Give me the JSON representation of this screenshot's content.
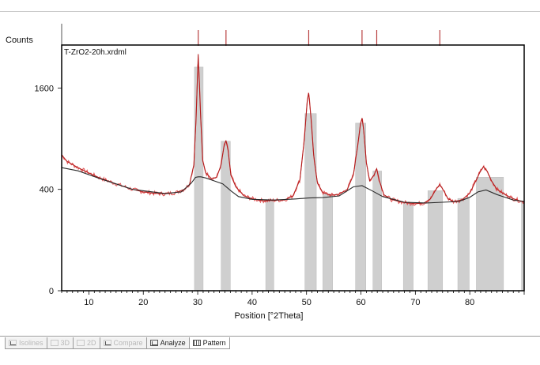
{
  "tabs": [
    {
      "label": "Isolines",
      "icon": "isolines-icon",
      "state": "disabled"
    },
    {
      "label": "3D",
      "icon": "3d-view-icon",
      "state": "disabled"
    },
    {
      "label": "2D",
      "icon": "2d-view-icon",
      "state": "disabled"
    },
    {
      "label": "Compare",
      "icon": "compare-icon",
      "state": "disabled"
    },
    {
      "label": "Analyze",
      "icon": "analyze-graph-icon",
      "state": "enabled"
    },
    {
      "label": "Pattern",
      "icon": "pattern-icon",
      "state": "active"
    }
  ],
  "colors": {
    "observed": "#e0494a",
    "calculated": "#b01818",
    "background": "#2a2a2a",
    "region_fill": "#cfcfcf",
    "peak_marker": "#b84040"
  },
  "chart_data": {
    "type": "line",
    "title": "",
    "scan_name": "T-ZrO2-20h.xrdml",
    "xlabel": "Position [°2Theta]",
    "ylabel": "Counts",
    "xlim": [
      5,
      90
    ],
    "ylim": [
      0,
      2350
    ],
    "scale": "sqrt",
    "x_ticks": [
      10,
      20,
      30,
      40,
      50,
      60,
      70,
      80
    ],
    "y_ticks": [
      0,
      400,
      1600
    ],
    "peak_markers": [
      30.1,
      35.2,
      50.4,
      60.2,
      62.9,
      74.5
    ],
    "background_regions": [
      [
        29.4,
        31.0
      ],
      [
        34.3,
        36.0
      ],
      [
        42.5,
        44.0
      ],
      [
        49.7,
        51.8
      ],
      [
        53.0,
        54.8
      ],
      [
        59.0,
        60.9
      ],
      [
        62.2,
        63.8
      ],
      [
        67.8,
        69.6
      ],
      [
        72.3,
        75.0
      ],
      [
        77.8,
        79.9
      ],
      [
        81.2,
        86.2
      ],
      [
        89.5,
        90.0
      ]
    ],
    "series": [
      {
        "role": "calculated",
        "x": [
          5,
          6,
          8,
          10,
          12,
          15,
          18,
          20,
          22,
          24,
          26,
          27.5,
          28.5,
          29.3,
          29.7,
          30.1,
          30.5,
          30.9,
          31.5,
          32.5,
          33.5,
          34.3,
          34.8,
          35.2,
          35.6,
          36.1,
          37,
          38.5,
          40,
          42,
          44,
          46,
          47.5,
          48.8,
          49.6,
          50.1,
          50.4,
          50.8,
          51.3,
          52,
          53,
          54.5,
          56,
          57.5,
          58.6,
          59.4,
          59.9,
          60.2,
          60.5,
          61,
          61.6,
          62.4,
          62.9,
          63.4,
          64.2,
          65.5,
          67,
          68.5,
          70,
          71.5,
          72.8,
          73.8,
          74.5,
          75.2,
          76,
          77,
          78.5,
          80,
          81,
          81.8,
          82.5,
          83.2,
          84,
          85,
          86.5,
          88,
          89.2,
          90
        ],
        "y": [
          720,
          650,
          590,
          540,
          495,
          445,
          400,
          380,
          370,
          365,
          375,
          400,
          440,
          620,
          1150,
          2180,
          1250,
          660,
          540,
          490,
          500,
          620,
          800,
          880,
          760,
          520,
          420,
          350,
          330,
          315,
          318,
          322,
          350,
          480,
          900,
          1380,
          1520,
          1180,
          720,
          450,
          375,
          355,
          362,
          400,
          520,
          820,
          1080,
          1160,
          1000,
          640,
          470,
          520,
          580,
          470,
          360,
          325,
          310,
          300,
          295,
          298,
          330,
          400,
          440,
          390,
          330,
          310,
          320,
          370,
          460,
          540,
          600,
          555,
          470,
          400,
          360,
          330,
          315,
          305
        ]
      },
      {
        "role": "background",
        "x": [
          5,
          8,
          12,
          18,
          24,
          27,
          28.8,
          29.6,
          30.1,
          30.6,
          31.5,
          33,
          34.6,
          36.2,
          37.5,
          40,
          44,
          48,
          50.4,
          53,
          56,
          58.6,
          60.2,
          62,
          64,
          68,
          72,
          75,
          78,
          80,
          81.5,
          83,
          85,
          88,
          90
        ],
        "y": [
          590,
          560,
          490,
          400,
          368,
          380,
          450,
          500,
          505,
          505,
          495,
          470,
          445,
          385,
          345,
          325,
          320,
          328,
          335,
          338,
          350,
          420,
          430,
          390,
          345,
          305,
          300,
          305,
          310,
          340,
          380,
          395,
          360,
          320,
          310
        ]
      }
    ]
  }
}
